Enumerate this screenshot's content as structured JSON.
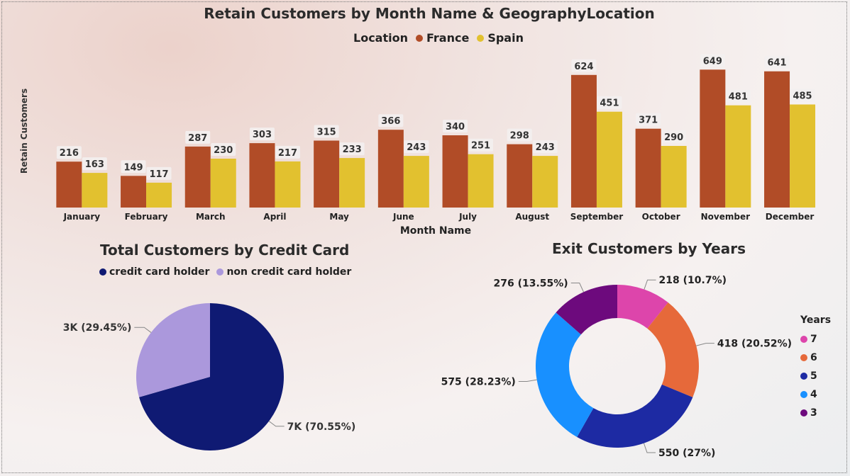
{
  "bar_chart": {
    "title": "Retain Customers by Month Name & GeographyLocation",
    "legend_title": "Location",
    "xlabel": "Month Name",
    "ylabel": "Retain Customers"
  },
  "pie_chart": {
    "title": "Total Customers by Credit Card",
    "labels": [
      "7K (70.55%)",
      "3K (29.45%)"
    ]
  },
  "donut_chart": {
    "title": "Exit Customers by Years",
    "legend_title": "Years",
    "labels": [
      "218 (10.7%)",
      "418 (20.52%)",
      "550 (27%)",
      "575 (28.23%)",
      "276 (13.55%)"
    ]
  },
  "chart_data": [
    {
      "type": "bar",
      "title": "Retain Customers by Month Name & GeographyLocation",
      "xlabel": "Month Name",
      "ylabel": "Retain Customers",
      "legend_placement": "top-center",
      "categories": [
        "January",
        "February",
        "March",
        "April",
        "May",
        "June",
        "July",
        "August",
        "September",
        "October",
        "November",
        "December"
      ],
      "series": [
        {
          "name": "France",
          "color": "#b14c27",
          "values": [
            216,
            149,
            287,
            303,
            315,
            366,
            340,
            298,
            624,
            371,
            649,
            641
          ]
        },
        {
          "name": "Spain",
          "color": "#e2c12f",
          "values": [
            163,
            117,
            230,
            217,
            233,
            243,
            251,
            243,
            451,
            290,
            481,
            485
          ]
        }
      ],
      "ylim": [
        0,
        700
      ],
      "grid": false
    },
    {
      "type": "pie",
      "title": "Total Customers by Credit Card",
      "legend_placement": "top-left",
      "slices": [
        {
          "name": "credit card holder",
          "value": 70.55,
          "label": "7K (70.55%)",
          "color": "#0f1a73"
        },
        {
          "name": "non credit card holder",
          "value": 29.45,
          "label": "3K (29.45%)",
          "color": "#ab98dc"
        }
      ]
    },
    {
      "type": "pie",
      "subtype": "donut",
      "title": "Exit Customers by Years",
      "legend_title": "Years",
      "legend_placement": "right",
      "slices": [
        {
          "name": "7",
          "value": 218,
          "label": "218 (10.7%)",
          "color": "#dd45ab"
        },
        {
          "name": "6",
          "value": 418,
          "label": "418 (20.52%)",
          "color": "#e6693a"
        },
        {
          "name": "5",
          "value": 550,
          "label": "550 (27%)",
          "color": "#1d2aa3"
        },
        {
          "name": "4",
          "value": 575,
          "label": "575 (28.23%)",
          "color": "#1890ff"
        },
        {
          "name": "3",
          "value": 276,
          "label": "276 (13.55%)",
          "color": "#6d0a7d"
        }
      ]
    }
  ]
}
